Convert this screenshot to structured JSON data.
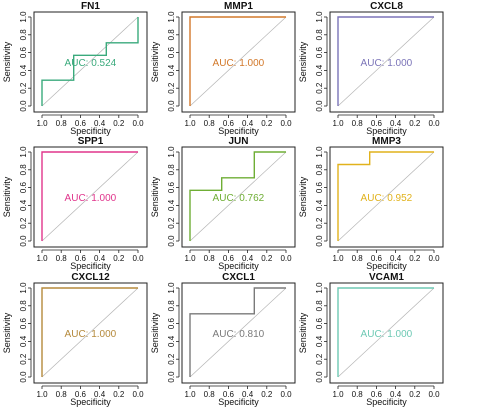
{
  "chart_data": [
    {
      "type": "line",
      "title": "FN1",
      "xlabel": "Specificity",
      "ylabel": "Sensitivity",
      "auc_label": "AUC: 0.524",
      "color": "#3aaa7c",
      "xlim": [
        1.0,
        0.0
      ],
      "ylim": [
        0.0,
        1.0
      ],
      "x_ticks": [
        "1.0",
        "0.8",
        "0.6",
        "0.4",
        "0.2",
        "0.0"
      ],
      "y_ticks": [
        "0.0",
        "0.2",
        "0.4",
        "0.6",
        "0.8",
        "1.0"
      ],
      "roc": {
        "specificity": [
          1.0,
          1.0,
          0.67,
          0.67,
          0.33,
          0.33,
          0.0,
          0.0
        ],
        "sensitivity": [
          0.0,
          0.29,
          0.29,
          0.57,
          0.57,
          0.71,
          0.71,
          1.0
        ]
      }
    },
    {
      "type": "line",
      "title": "MMP1",
      "xlabel": "Specificity",
      "ylabel": "Sensitivity",
      "auc_label": "AUC: 1.000",
      "color": "#d2782a",
      "xlim": [
        1.0,
        0.0
      ],
      "ylim": [
        0.0,
        1.0
      ],
      "x_ticks": [
        "1.0",
        "0.8",
        "0.6",
        "0.4",
        "0.2",
        "0.0"
      ],
      "y_ticks": [
        "0.0",
        "0.2",
        "0.4",
        "0.6",
        "0.8",
        "1.0"
      ],
      "roc": {
        "specificity": [
          1.0,
          1.0,
          0.0
        ],
        "sensitivity": [
          0.0,
          1.0,
          1.0
        ]
      }
    },
    {
      "type": "line",
      "title": "CXCL8",
      "xlabel": "Specificity",
      "ylabel": "Sensitivity",
      "auc_label": "AUC: 1.000",
      "color": "#7b74b8",
      "xlim": [
        1.0,
        0.0
      ],
      "ylim": [
        0.0,
        1.0
      ],
      "x_ticks": [
        "1.0",
        "0.8",
        "0.6",
        "0.4",
        "0.2",
        "0.0"
      ],
      "y_ticks": [
        "0.0",
        "0.2",
        "0.4",
        "0.6",
        "0.8",
        "1.0"
      ],
      "roc": {
        "specificity": [
          1.0,
          1.0,
          0.0
        ],
        "sensitivity": [
          0.0,
          1.0,
          1.0
        ]
      }
    },
    {
      "type": "line",
      "title": "SPP1",
      "xlabel": "Specificity",
      "ylabel": "Sensitivity",
      "auc_label": "AUC: 1.000",
      "color": "#e0358c",
      "xlim": [
        1.0,
        0.0
      ],
      "ylim": [
        0.0,
        1.0
      ],
      "x_ticks": [
        "1.0",
        "0.8",
        "0.6",
        "0.4",
        "0.2",
        "0.0"
      ],
      "y_ticks": [
        "0.0",
        "0.2",
        "0.4",
        "0.6",
        "0.8",
        "1.0"
      ],
      "roc": {
        "specificity": [
          1.0,
          1.0,
          0.0
        ],
        "sensitivity": [
          0.0,
          1.0,
          1.0
        ]
      }
    },
    {
      "type": "line",
      "title": "JUN",
      "xlabel": "Specificity",
      "ylabel": "Sensitivity",
      "auc_label": "AUC: 0.762",
      "color": "#6fae35",
      "xlim": [
        1.0,
        0.0
      ],
      "ylim": [
        0.0,
        1.0
      ],
      "x_ticks": [
        "1.0",
        "0.8",
        "0.6",
        "0.4",
        "0.2",
        "0.0"
      ],
      "y_ticks": [
        "0.0",
        "0.2",
        "0.4",
        "0.6",
        "0.8",
        "1.0"
      ],
      "roc": {
        "specificity": [
          1.0,
          1.0,
          0.67,
          0.67,
          0.33,
          0.33,
          0.0
        ],
        "sensitivity": [
          0.0,
          0.57,
          0.57,
          0.71,
          0.71,
          1.0,
          1.0
        ]
      }
    },
    {
      "type": "line",
      "title": "MMP3",
      "xlabel": "Specificity",
      "ylabel": "Sensitivity",
      "auc_label": "AUC: 0.952",
      "color": "#e1b21c",
      "xlim": [
        1.0,
        0.0
      ],
      "ylim": [
        0.0,
        1.0
      ],
      "x_ticks": [
        "1.0",
        "0.8",
        "0.6",
        "0.4",
        "0.2",
        "0.0"
      ],
      "y_ticks": [
        "0.0",
        "0.2",
        "0.4",
        "0.6",
        "0.8",
        "1.0"
      ],
      "roc": {
        "specificity": [
          1.0,
          1.0,
          0.67,
          0.67,
          0.0
        ],
        "sensitivity": [
          0.0,
          0.86,
          0.86,
          1.0,
          1.0
        ]
      }
    },
    {
      "type": "line",
      "title": "CXCL12",
      "xlabel": "Specificity",
      "ylabel": "Sensitivity",
      "auc_label": "AUC: 1.000",
      "color": "#b58a3c",
      "xlim": [
        1.0,
        0.0
      ],
      "ylim": [
        0.0,
        1.0
      ],
      "x_ticks": [
        "1.0",
        "0.8",
        "0.6",
        "0.4",
        "0.2",
        "0.0"
      ],
      "y_ticks": [
        "0.0",
        "0.2",
        "0.4",
        "0.6",
        "0.8",
        "1.0"
      ],
      "roc": {
        "specificity": [
          1.0,
          1.0,
          0.0
        ],
        "sensitivity": [
          0.0,
          1.0,
          1.0
        ]
      }
    },
    {
      "type": "line",
      "title": "CXCL1",
      "xlabel": "Specificity",
      "ylabel": "Sensitivity",
      "auc_label": "AUC: 0.810",
      "color": "#7a7a7a",
      "xlim": [
        1.0,
        0.0
      ],
      "ylim": [
        0.0,
        1.0
      ],
      "x_ticks": [
        "1.0",
        "0.8",
        "0.6",
        "0.4",
        "0.2",
        "0.0"
      ],
      "y_ticks": [
        "0.0",
        "0.2",
        "0.4",
        "0.6",
        "0.8",
        "1.0"
      ],
      "roc": {
        "specificity": [
          1.0,
          1.0,
          0.33,
          0.33,
          0.0
        ],
        "sensitivity": [
          0.0,
          0.71,
          0.71,
          1.0,
          1.0
        ]
      }
    },
    {
      "type": "line",
      "title": "VCAM1",
      "xlabel": "Specificity",
      "ylabel": "Sensitivity",
      "auc_label": "AUC: 1.000",
      "color": "#6ec9b4",
      "xlim": [
        1.0,
        0.0
      ],
      "ylim": [
        0.0,
        1.0
      ],
      "x_ticks": [
        "1.0",
        "0.8",
        "0.6",
        "0.4",
        "0.2",
        "0.0"
      ],
      "y_ticks": [
        "0.0",
        "0.2",
        "0.4",
        "0.6",
        "0.8",
        "1.0"
      ],
      "roc": {
        "specificity": [
          1.0,
          1.0,
          0.0
        ],
        "sensitivity": [
          0.0,
          1.0,
          1.0
        ]
      }
    }
  ]
}
